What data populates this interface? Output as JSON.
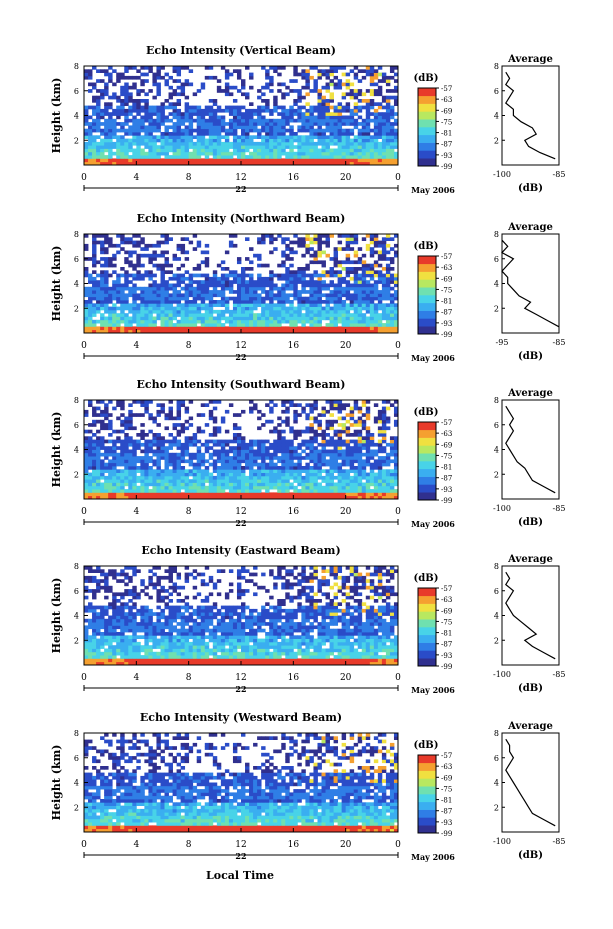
{
  "footer": {
    "xlabel": "Local Time"
  },
  "chart_data": [
    {
      "type": "heatmap",
      "title": "Echo Intensity (Vertical Beam)",
      "ylabel": "Height (km)",
      "x_ticks": [
        "0",
        "4",
        "8",
        "12",
        "16",
        "20",
        "0"
      ],
      "date_label": "22",
      "month_label": "May 2006",
      "xlim": [
        0,
        24
      ],
      "ylim": [
        0,
        8
      ],
      "y_ticks": [
        "2",
        "4",
        "6",
        "8"
      ],
      "colorbar": {
        "unit": "(dB)",
        "ticks": [
          "-57",
          "-63",
          "-69",
          "-75",
          "-81",
          "-87",
          "-93",
          "-99"
        ],
        "range": [
          -99,
          -57
        ]
      },
      "average": {
        "title": "Average",
        "xlabel": "(dB)",
        "x_ticks": [
          "-100",
          "-85"
        ],
        "xlim": [
          -100,
          -85
        ],
        "y_ticks": [
          "2",
          "4",
          "6",
          "8"
        ],
        "height_km": [
          0.5,
          1.0,
          1.5,
          2.0,
          2.5,
          3.0,
          3.5,
          4.0,
          4.5,
          5.0,
          5.5,
          6.0,
          6.5,
          7.0,
          7.5
        ],
        "db": [
          -86,
          -90,
          -93,
          -94,
          -91,
          -92,
          -95,
          -97,
          -97,
          -99,
          -98,
          -97,
          -99,
          -98,
          -99
        ]
      },
      "description_features": {
        "surface_layer_db": -60,
        "gap_band_km": 3.2,
        "clouds_after_hour": 17
      }
    },
    {
      "type": "heatmap",
      "title": "Echo Intensity (Northward Beam)",
      "ylabel": "Height (km)",
      "x_ticks": [
        "0",
        "4",
        "8",
        "12",
        "16",
        "20",
        "0"
      ],
      "date_label": "22",
      "month_label": "May 2006",
      "xlim": [
        0,
        24
      ],
      "ylim": [
        0,
        8
      ],
      "y_ticks": [
        "2",
        "4",
        "6",
        "8"
      ],
      "colorbar": {
        "unit": "(dB)",
        "ticks": [
          "-57",
          "-63",
          "-69",
          "-75",
          "-81",
          "-87",
          "-93",
          "-99"
        ],
        "range": [
          -99,
          -57
        ]
      },
      "average": {
        "title": "Average",
        "xlabel": "(dB)",
        "x_ticks": [
          "-95",
          "-85"
        ],
        "xlim": [
          -95,
          -85
        ],
        "y_ticks": [
          "2",
          "4",
          "6",
          "8"
        ],
        "height_km": [
          0.5,
          1.0,
          1.5,
          2.0,
          2.5,
          3.0,
          3.5,
          4.0,
          4.5,
          5.0,
          5.5,
          6.0,
          6.5,
          7.0,
          7.5
        ],
        "db": [
          -85,
          -87,
          -89,
          -91,
          -90,
          -92,
          -93,
          -94,
          -94,
          -95,
          -94,
          -93,
          -95,
          -94,
          -95
        ]
      },
      "description_features": {
        "surface_layer_db": -60,
        "gap_band_km": 3.2,
        "clouds_after_hour": 17
      }
    },
    {
      "type": "heatmap",
      "title": "Echo Intensity (Southward Beam)",
      "ylabel": "Height (km)",
      "x_ticks": [
        "0",
        "4",
        "8",
        "12",
        "16",
        "20",
        "0"
      ],
      "date_label": "22",
      "month_label": "May 2006",
      "xlim": [
        0,
        24
      ],
      "ylim": [
        0,
        8
      ],
      "y_ticks": [
        "2",
        "4",
        "6",
        "8"
      ],
      "colorbar": {
        "unit": "(dB)",
        "ticks": [
          "-57",
          "-63",
          "-69",
          "-75",
          "-81",
          "-87",
          "-93",
          "-99"
        ],
        "range": [
          -99,
          -57
        ]
      },
      "average": {
        "title": "Average",
        "xlabel": "(dB)",
        "x_ticks": [
          "-100",
          "-85"
        ],
        "xlim": [
          -100,
          -85
        ],
        "y_ticks": [
          "2",
          "4",
          "6",
          "8"
        ],
        "height_km": [
          0.5,
          1.0,
          1.5,
          2.0,
          2.5,
          3.0,
          3.5,
          4.0,
          4.5,
          5.0,
          5.5,
          6.0,
          6.5,
          7.0,
          7.5
        ],
        "db": [
          -86,
          -89,
          -92,
          -93,
          -94,
          -96,
          -97,
          -98,
          -99,
          -98,
          -97,
          -98,
          -97,
          -98,
          -99
        ]
      },
      "description_features": {
        "surface_layer_db": -60,
        "gap_band_km": 3.2,
        "clouds_after_hour": 17
      }
    },
    {
      "type": "heatmap",
      "title": "Echo Intensity (Eastward Beam)",
      "ylabel": "Height (km)",
      "x_ticks": [
        "0",
        "4",
        "8",
        "12",
        "16",
        "20",
        "0"
      ],
      "date_label": "22",
      "month_label": "May 2006",
      "xlim": [
        0,
        24
      ],
      "ylim": [
        0,
        8
      ],
      "y_ticks": [
        "2",
        "4",
        "6",
        "8"
      ],
      "colorbar": {
        "unit": "(dB)",
        "ticks": [
          "-57",
          "-63",
          "-69",
          "-75",
          "-81",
          "-87",
          "-93",
          "-99"
        ],
        "range": [
          -99,
          -57
        ]
      },
      "average": {
        "title": "Average",
        "xlabel": "(dB)",
        "x_ticks": [
          "-100",
          "-85"
        ],
        "xlim": [
          -100,
          -85
        ],
        "y_ticks": [
          "2",
          "4",
          "6",
          "8"
        ],
        "height_km": [
          0.5,
          1.0,
          1.5,
          2.0,
          2.5,
          3.0,
          3.5,
          4.0,
          4.5,
          5.0,
          5.5,
          6.0,
          6.5,
          7.0,
          7.5
        ],
        "db": [
          -86,
          -89,
          -92,
          -94,
          -91,
          -93,
          -95,
          -97,
          -98,
          -99,
          -98,
          -97,
          -99,
          -98,
          -99
        ]
      },
      "description_features": {
        "surface_layer_db": -60,
        "gap_band_km": 3.2,
        "clouds_after_hour": 17
      }
    },
    {
      "type": "heatmap",
      "title": "Echo Intensity (Westward Beam)",
      "ylabel": "Height (km)",
      "x_ticks": [
        "0",
        "4",
        "8",
        "12",
        "16",
        "20",
        "0"
      ],
      "date_label": "22",
      "month_label": "May 2006",
      "xlim": [
        0,
        24
      ],
      "ylim": [
        0,
        8
      ],
      "y_ticks": [
        "2",
        "4",
        "6",
        "8"
      ],
      "colorbar": {
        "unit": "(dB)",
        "ticks": [
          "-57",
          "-63",
          "-69",
          "-75",
          "-81",
          "-87",
          "-93",
          "-99"
        ],
        "range": [
          -99,
          -57
        ]
      },
      "average": {
        "title": "Average",
        "xlabel": "(dB)",
        "x_ticks": [
          "-100",
          "-85"
        ],
        "xlim": [
          -100,
          -85
        ],
        "y_ticks": [
          "2",
          "4",
          "6",
          "8"
        ],
        "height_km": [
          0.5,
          1.0,
          1.5,
          2.0,
          2.5,
          3.0,
          3.5,
          4.0,
          4.5,
          5.0,
          5.5,
          6.0,
          6.5,
          7.0,
          7.5
        ],
        "db": [
          -86,
          -89,
          -92,
          -93,
          -94,
          -95,
          -96,
          -97,
          -98,
          -99,
          -98,
          -97,
          -98,
          -98,
          -99
        ]
      },
      "description_features": {
        "surface_layer_db": -60,
        "gap_band_km": 3.2,
        "clouds_after_hour": 17
      }
    }
  ],
  "colors": {
    "scale": [
      "#30308f",
      "#2a4cc8",
      "#2f7ee6",
      "#3aaef0",
      "#48d3e8",
      "#6fe0b0",
      "#b8e860",
      "#f0e040",
      "#f5a030",
      "#e83a2a"
    ],
    "axis": "#000000",
    "missing": "#ffffff"
  }
}
